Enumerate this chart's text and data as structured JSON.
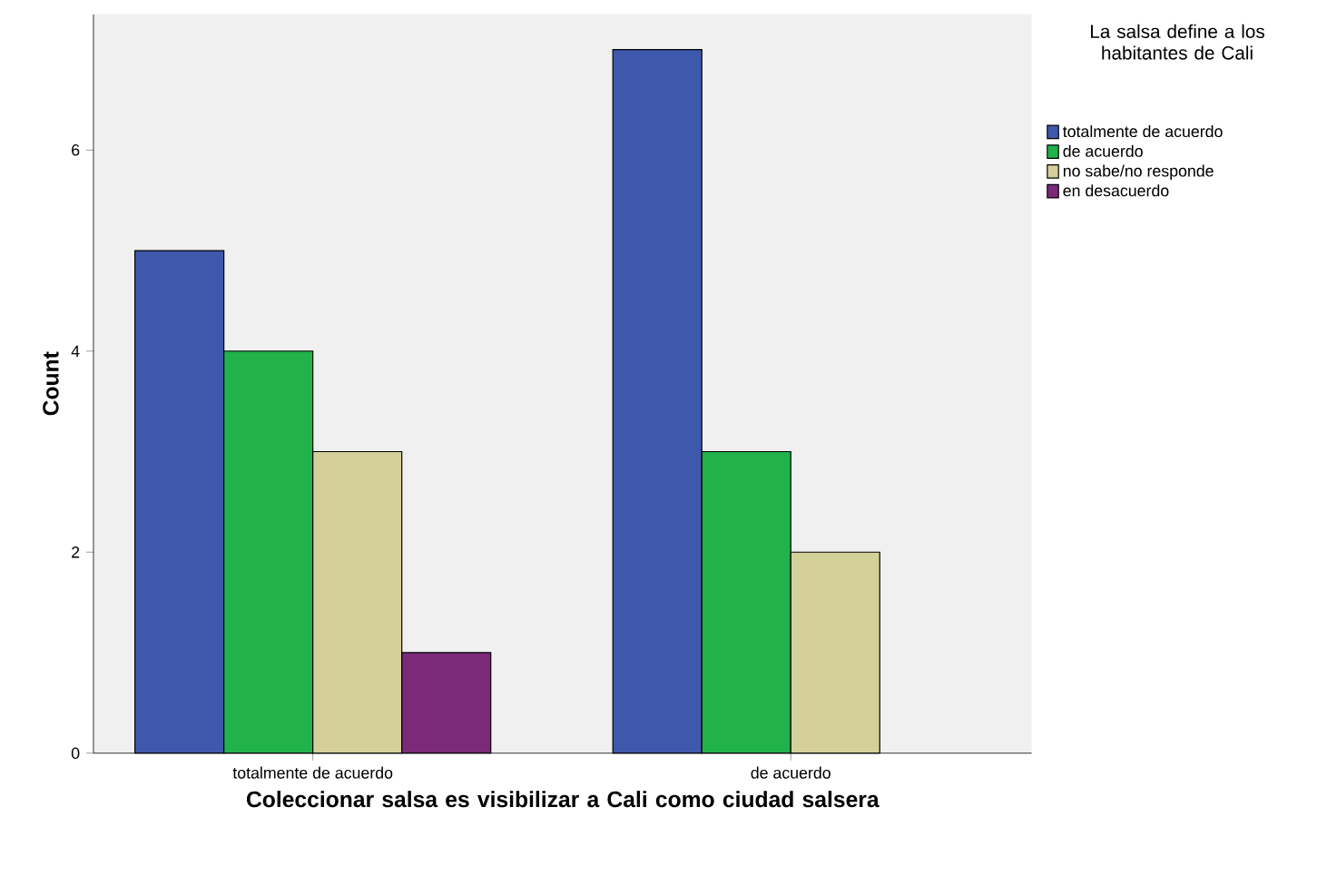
{
  "chart_data": {
    "type": "bar",
    "xlabel": "Coleccionar salsa es visibilizar a Cali como ciudad salsera",
    "ylabel": "Count",
    "legend_title": "La salsa define a los habitantes de Cali",
    "categories": [
      "totalmente de acuerdo",
      "de acuerdo"
    ],
    "series": [
      {
        "name": "totalmente de acuerdo",
        "color": "#3e58ac",
        "values": [
          5,
          7
        ]
      },
      {
        "name": "de acuerdo",
        "color": "#21b24b",
        "values": [
          4,
          3
        ]
      },
      {
        "name": "no sabe/no responde",
        "color": "#d4d09a",
        "values": [
          3,
          2
        ]
      },
      {
        "name": "en desacuerdo",
        "color": "#7b2a7a",
        "values": [
          1,
          null
        ]
      }
    ],
    "ylim": [
      0,
      7.35
    ],
    "yticks": [
      0,
      2,
      4,
      6
    ],
    "grid": false,
    "legend": "right"
  }
}
